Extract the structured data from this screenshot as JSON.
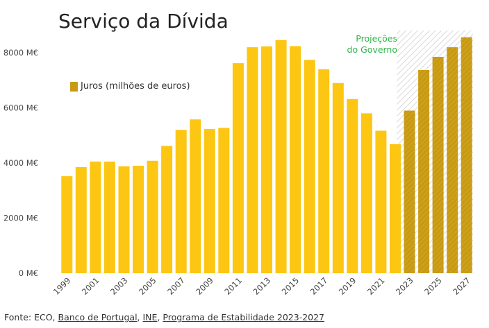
{
  "chart_data": {
    "type": "bar",
    "title": "Serviço da Dívida",
    "xlabel": "",
    "ylabel": "",
    "ylim": [
      0,
      8800
    ],
    "yticks": [
      0,
      2000,
      4000,
      6000,
      8000
    ],
    "ytick_labels": [
      "0 M€",
      "2000 M€",
      "4000 M€",
      "6000 M€",
      "8000 M€"
    ],
    "xtick_labels": [
      "1999",
      "2001",
      "2003",
      "2005",
      "2007",
      "2009",
      "2011",
      "2013",
      "2015",
      "2017",
      "2019",
      "2021",
      "2023",
      "2025",
      "2027"
    ],
    "categories": [
      "1999",
      "2000",
      "2001",
      "2002",
      "2003",
      "2004",
      "2005",
      "2006",
      "2007",
      "2008",
      "2009",
      "2010",
      "2011",
      "2012",
      "2013",
      "2014",
      "2015",
      "2016",
      "2017",
      "2018",
      "2019",
      "2020",
      "2021",
      "2022",
      "2023",
      "2024",
      "2025",
      "2026",
      "2027"
    ],
    "series": [
      {
        "name": "Juros (milhões de euros)",
        "values": [
          3520,
          3850,
          4050,
          4050,
          3880,
          3900,
          4080,
          4620,
          5200,
          5580,
          5230,
          5270,
          7620,
          8200,
          8230,
          8460,
          8240,
          7740,
          7400,
          6900,
          6320,
          5800,
          5170,
          4680,
          5900,
          7370,
          7850,
          8200,
          8560
        ]
      }
    ],
    "projection": {
      "label_line1": "Projeções",
      "label_line2": "do Governo",
      "from": "2023",
      "to": "2027"
    },
    "grid": false,
    "legend_position": "upper-left"
  },
  "colors": {
    "actual": "#fcc613",
    "projected": "#c89a14",
    "projection_label": "#2fb44a"
  },
  "source": {
    "prefix": "Fonte: ECO, ",
    "link1": "Banco de Portugal",
    "sep1": ", ",
    "link2": "INE",
    "sep2": ", ",
    "link3": "Programa de Estabilidade 2023-2027"
  }
}
